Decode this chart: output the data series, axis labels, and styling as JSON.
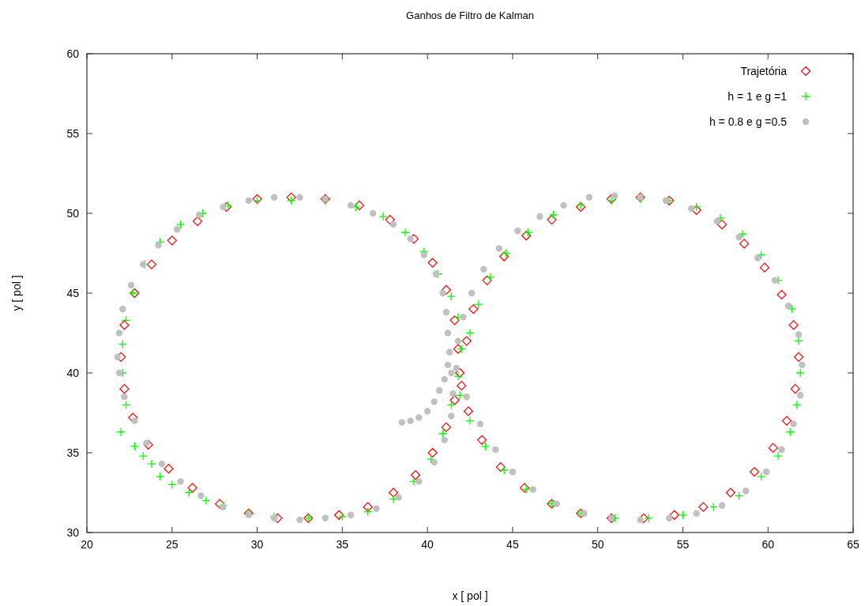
{
  "chart_data": {
    "type": "scatter",
    "title": "Ganhos de Filtro de Kalman",
    "xlabel": "x [ pol ]",
    "ylabel": "y [ pol ]",
    "xlim": [
      20,
      65
    ],
    "ylim": [
      30,
      60
    ],
    "xticks": [
      20,
      25,
      30,
      35,
      40,
      45,
      50,
      55,
      60,
      65
    ],
    "yticks": [
      30,
      35,
      40,
      45,
      50,
      55,
      60
    ],
    "grid": false,
    "legend": "top right",
    "series": [
      {
        "name": "Trajetória",
        "color": "#ff0000",
        "marker": "diamond",
        "x": [
          32,
          34,
          36,
          37.8,
          39.2,
          40.3,
          41.1,
          41.6,
          41.8,
          41.9,
          41.6,
          41.1,
          40.3,
          39.3,
          38,
          36.5,
          34.8,
          33,
          31.2,
          29.5,
          27.8,
          26.2,
          24.8,
          23.6,
          22.7,
          22.2,
          22,
          22.2,
          22.8,
          23.8,
          25,
          26.5,
          28.2,
          30,
          42.3,
          42.7,
          43.5,
          44.5,
          45.8,
          47.3,
          49,
          50.8,
          52.5,
          54.2,
          55.8,
          57.3,
          58.6,
          59.8,
          60.8,
          61.5,
          61.8,
          61.6,
          61.1,
          60.3,
          59.2,
          57.8,
          56.2,
          54.5,
          52.7,
          50.8,
          49,
          47.3,
          45.7,
          44.3,
          43.2,
          42.4,
          42
        ],
        "values": [
          51,
          50.9,
          50.5,
          49.6,
          48.4,
          46.9,
          45.2,
          43.3,
          41.5,
          40,
          38.3,
          36.6,
          35,
          33.6,
          32.5,
          31.6,
          31.1,
          30.9,
          30.9,
          31.2,
          31.8,
          32.8,
          34,
          35.5,
          37.2,
          39,
          41,
          43,
          45,
          46.8,
          48.3,
          49.5,
          50.4,
          50.9,
          42,
          44,
          45.8,
          47.3,
          48.6,
          49.6,
          50.4,
          50.9,
          51,
          50.8,
          50.2,
          49.3,
          48.1,
          46.6,
          44.9,
          43,
          41,
          39,
          37,
          35.3,
          33.8,
          32.5,
          31.6,
          31.1,
          30.9,
          30.9,
          31.2,
          31.8,
          32.8,
          34.1,
          35.8,
          37.6,
          39.2
        ]
      },
      {
        "name": "h = 1 e g =1",
        "color": "#00ff00",
        "marker": "cross",
        "x": [
          22,
          22.8,
          23.3,
          23.8,
          24.3,
          25,
          26,
          27,
          28,
          29.5,
          31,
          33,
          35,
          36.5,
          38,
          39.2,
          40.2,
          40.9,
          41.4,
          41.8,
          42,
          41.8,
          41.4,
          40.6,
          39.8,
          38.7,
          37.4,
          35.8,
          34,
          32,
          30,
          28.3,
          26.8,
          25.5,
          24.3,
          23.4,
          22.7,
          22.3,
          22.1,
          22.1,
          22.3,
          42.5,
          43,
          43.7,
          44.6,
          45.9,
          47.4,
          49,
          50.8,
          52.5,
          54.2,
          55.8,
          57.2,
          58.5,
          59.6,
          60.6,
          61.4,
          61.8,
          61.9,
          61.7,
          61.3,
          60.6,
          59.6,
          58.3,
          56.8,
          55,
          53,
          51,
          49,
          47.3,
          45.8,
          44.5,
          43.4,
          42.5,
          41.9
        ],
        "values": [
          36.3,
          35.4,
          34.8,
          34.3,
          33.5,
          33,
          32.5,
          32,
          31.7,
          31.2,
          31,
          30.9,
          31,
          31.3,
          32.1,
          33.2,
          34.6,
          36.2,
          38,
          39.8,
          41.5,
          43.5,
          44.8,
          46.2,
          47.6,
          48.8,
          49.8,
          50.4,
          50.8,
          50.8,
          50.8,
          50.5,
          50,
          49.3,
          48.2,
          46.8,
          45,
          43.3,
          41.8,
          40,
          38,
          42.5,
          44.3,
          46,
          47.5,
          48.8,
          49.9,
          50.5,
          50.8,
          50.9,
          50.8,
          50.4,
          49.7,
          48.7,
          47.4,
          45.8,
          44,
          42,
          40,
          38,
          36.3,
          34.8,
          33.5,
          32.3,
          31.6,
          31.1,
          30.9,
          30.9,
          31.2,
          31.8,
          32.7,
          33.9,
          35.4,
          37,
          38.6
        ]
      },
      {
        "name": "h = 0.8 e g =0.5",
        "color": "#c0c0c0",
        "marker": "circle",
        "x": [
          21.8,
          21.9,
          22.1,
          22.6,
          23.3,
          24.2,
          25.3,
          26.6,
          28,
          29.5,
          31,
          32.5,
          34,
          35.5,
          36.8,
          38,
          39,
          39.8,
          40.5,
          40.9,
          41.1,
          41.2,
          41.3,
          41.4,
          41.5,
          41.4,
          41,
          40.4,
          39.5,
          38.3,
          37,
          35.5,
          34,
          32.5,
          31,
          29.5,
          28,
          26.7,
          25.5,
          24.4,
          23.5,
          22.8,
          22.2,
          21.9,
          38.5,
          39,
          39.5,
          40,
          40.4,
          40.7,
          41,
          41.2,
          41.8,
          42.1,
          42.6,
          43.3,
          44.2,
          45.3,
          46.6,
          48,
          49.5,
          51,
          52.5,
          54,
          55.5,
          57,
          58.3,
          59.4,
          60.4,
          61.2,
          61.8,
          62,
          61.9,
          61.5,
          60.8,
          59.9,
          58.7,
          57.3,
          55.8,
          54.2,
          52.5,
          50.8,
          49.2,
          47.6,
          46.2,
          45,
          44,
          43.1,
          42.3,
          41.7
        ],
        "values": [
          41,
          42.5,
          44,
          45.5,
          46.8,
          48,
          49,
          49.9,
          50.4,
          50.8,
          51,
          51,
          50.9,
          50.5,
          50,
          49.3,
          48.4,
          47.4,
          46.2,
          45,
          43.8,
          42.5,
          41.3,
          40,
          38.7,
          37.3,
          35.8,
          34.4,
          33.2,
          32.2,
          31.5,
          31.1,
          30.9,
          30.8,
          30.9,
          31.1,
          31.6,
          32.3,
          33.2,
          34.3,
          35.6,
          37,
          38.5,
          40,
          36.9,
          37,
          37.2,
          37.6,
          38.2,
          38.9,
          39.6,
          40.5,
          42,
          43.5,
          45,
          46.5,
          47.8,
          48.9,
          49.8,
          50.5,
          51,
          51.1,
          51,
          50.8,
          50.3,
          49.5,
          48.5,
          47.2,
          45.8,
          44.2,
          42.4,
          40.5,
          38.6,
          36.8,
          35.2,
          33.8,
          32.6,
          31.7,
          31.2,
          30.9,
          30.8,
          30.9,
          31.2,
          31.8,
          32.7,
          33.8,
          35.2,
          36.8,
          38.5,
          40.3
        ]
      }
    ]
  }
}
